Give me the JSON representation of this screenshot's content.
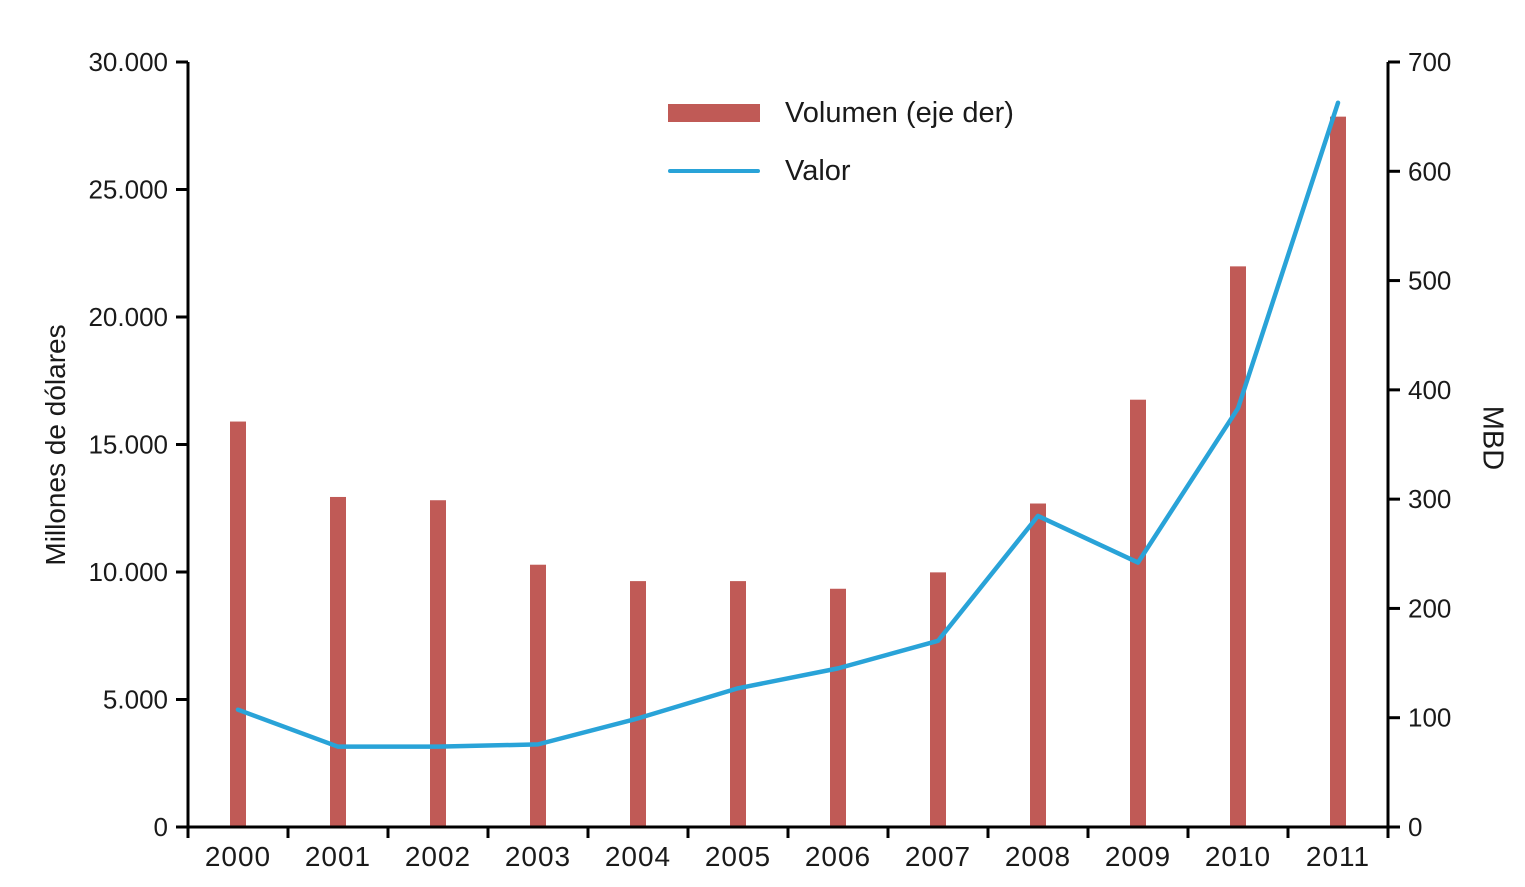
{
  "legend": {
    "items": [
      {
        "label": "Volumen (eje der)",
        "swatch": "bar-swatch"
      },
      {
        "label": "Valor",
        "swatch": "line-swatch"
      }
    ]
  },
  "axes": {
    "left": {
      "title": "Millones de dólares",
      "ticks": [
        {
          "value": 0,
          "label": "0"
        },
        {
          "value": 5000,
          "label": "5.000"
        },
        {
          "value": 10000,
          "label": "10.000"
        },
        {
          "value": 15000,
          "label": "15.000"
        },
        {
          "value": 20000,
          "label": "20.000"
        },
        {
          "value": 25000,
          "label": "25.000"
        },
        {
          "value": 30000,
          "label": "30.000"
        }
      ]
    },
    "right": {
      "title": "MBD",
      "ticks": [
        {
          "value": 0,
          "label": "0"
        },
        {
          "value": 100,
          "label": "100"
        },
        {
          "value": 200,
          "label": "200"
        },
        {
          "value": 300,
          "label": "300"
        },
        {
          "value": 400,
          "label": "400"
        },
        {
          "value": 500,
          "label": "500"
        },
        {
          "value": 600,
          "label": "600"
        },
        {
          "value": 700,
          "label": "700"
        }
      ]
    },
    "x": {
      "categories": [
        "2000",
        "2001",
        "2002",
        "2003",
        "2004",
        "2005",
        "2006",
        "2007",
        "2008",
        "2009",
        "2010",
        "2011"
      ]
    }
  },
  "colors": {
    "bar": "#C05A56",
    "line": "#29A3D8",
    "axis": "#000000",
    "text": "#1A1A1A"
  },
  "chart_data": {
    "type": "bar+line",
    "title": "",
    "categories": [
      "2000",
      "2001",
      "2002",
      "2003",
      "2004",
      "2005",
      "2006",
      "2007",
      "2008",
      "2009",
      "2010",
      "2011"
    ],
    "series": [
      {
        "name": "Volumen (eje der)",
        "chart": "bar",
        "axis": "right",
        "unit": "MBD",
        "values": [
          371,
          302,
          299,
          240,
          225,
          225,
          218,
          233,
          296,
          391,
          513,
          650
        ]
      },
      {
        "name": "Valor",
        "chart": "line",
        "axis": "left",
        "unit": "Millones de dólares",
        "values": [
          4600,
          3150,
          3150,
          3240,
          4260,
          5440,
          6220,
          7300,
          12200,
          10370,
          16420,
          28400
        ]
      }
    ],
    "left_axis_range": [
      0,
      30000
    ],
    "right_axis_range": [
      0,
      700
    ],
    "grid": false,
    "legend_position": "inside-top-center"
  }
}
